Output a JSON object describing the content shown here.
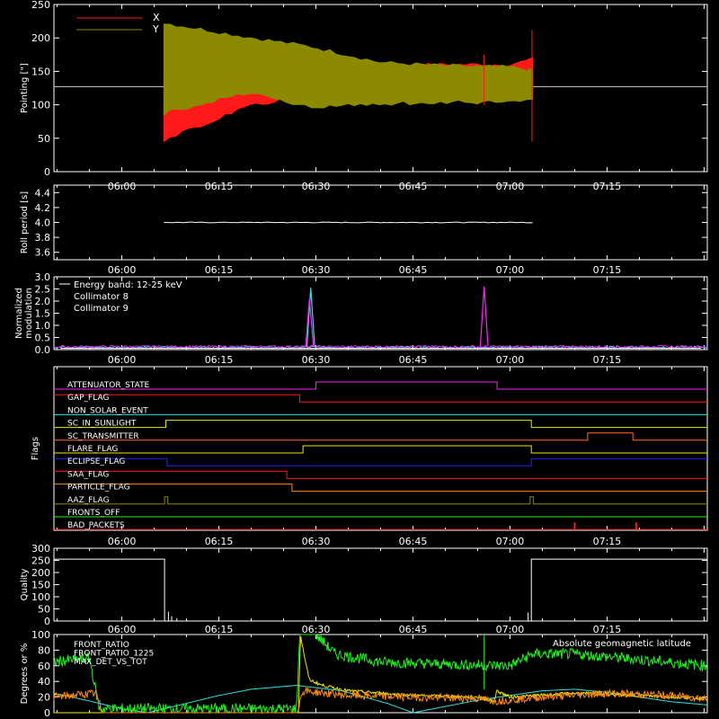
{
  "time_axis": {
    "tick_labels": [
      "06:00",
      "06:15",
      "06:30",
      "06:45",
      "07:00",
      "07:15"
    ],
    "tick_minutes": [
      360,
      375,
      390,
      405,
      420,
      435
    ],
    "range_minutes": [
      349.5,
      450.5
    ]
  },
  "colors": {
    "red": "#ff1a1a",
    "olive": "#8c8a00",
    "white": "#ffffff",
    "cyan": "#33e0e0",
    "magenta": "#ff22ff",
    "orange": "#ff8a1a",
    "yellow": "#f2e600",
    "blue": "#2222ff",
    "green": "#22ee22",
    "brown": "#c85a28",
    "dark_orange": "#ff6a2a"
  },
  "chart_data": [
    {
      "id": "pointing",
      "type": "line",
      "ylabel": "Pointing [\"]",
      "ylim": [
        0,
        250
      ],
      "yticks": [
        0,
        50,
        100,
        150,
        200,
        250
      ],
      "baseline": 127,
      "legend": [
        {
          "name": "X",
          "color": "#ff1a1a"
        },
        {
          "name": "Y",
          "color": "#8c8a00"
        }
      ],
      "series": [
        {
          "name": "X",
          "x_min": [
            366.5,
            380,
            389,
            400,
            410,
            420,
            423.5
          ],
          "lower": [
            48,
            100,
            114,
            118,
            122,
            122,
            124
          ],
          "upper": [
            143,
            127,
            148,
            158,
            160,
            160,
            168
          ]
        },
        {
          "name": "Y",
          "x_min": [
            366.5,
            380,
            389,
            400,
            410,
            420,
            423.5
          ],
          "lower": [
            88,
            120,
            96,
            102,
            104,
            104,
            108
          ],
          "upper": [
            222,
            200,
            187,
            163,
            158,
            156,
            152
          ]
        }
      ]
    },
    {
      "id": "roll_period",
      "type": "line",
      "ylabel": "Roll period [s]",
      "ylim": [
        3.5,
        4.5
      ],
      "yticks": [
        3.6,
        3.8,
        4.0,
        4.2,
        4.4
      ],
      "series": [
        {
          "name": "roll",
          "x_min": [
            366.5,
            423.5
          ],
          "y": [
            4.0,
            4.0
          ]
        }
      ]
    },
    {
      "id": "modulation",
      "type": "line",
      "ylabel": "Normalized modulation",
      "ylim": [
        0,
        3.0
      ],
      "yticks": [
        0.0,
        0.5,
        1.0,
        1.5,
        2.0,
        2.5,
        3.0
      ],
      "legend_title": "Energy band: 12-25 keV",
      "legend": [
        {
          "name": "Collimator 8",
          "color": "#33e0e0"
        },
        {
          "name": "Collimator 9",
          "color": "#ff22ff"
        }
      ],
      "spikes": [
        {
          "series": "Collimator 8",
          "x_min": 389.2,
          "y": 2.55
        },
        {
          "series": "Collimator 9",
          "x_min": 389.0,
          "y": 2.1
        },
        {
          "series": "Collimator 9",
          "x_min": 416.0,
          "y": 2.6
        }
      ]
    },
    {
      "id": "flags",
      "type": "line",
      "ylabel": "Flags",
      "flags": [
        {
          "name": "ATTENUATOR_STATE",
          "color": "#ff22ff",
          "x": [
            349.5,
            390,
            390,
            418,
            418,
            450.5
          ],
          "y": [
            0,
            0,
            1,
            1,
            0,
            0
          ]
        },
        {
          "name": "GAP_FLAG",
          "color": "#ff1a1a",
          "x": [
            349.5,
            387.5,
            387.5,
            450.5
          ],
          "y": [
            1,
            1,
            0,
            0
          ]
        },
        {
          "name": "NON_SOLAR_EVENT",
          "color": "#33e0e0",
          "x": [
            349.5,
            450.5
          ],
          "y": [
            0,
            0
          ]
        },
        {
          "name": "SC_IN_SUNLIGHT",
          "color": "#f2e600",
          "x": [
            349.5,
            366.8,
            366.8,
            423.3,
            423.3,
            450.5
          ],
          "y": [
            0,
            0,
            1,
            1,
            0,
            0
          ]
        },
        {
          "name": "SC_TRANSMITTER",
          "color": "#ff6a2a",
          "x": [
            349.5,
            432,
            432,
            439,
            439,
            450.5
          ],
          "y": [
            0,
            0,
            1,
            1,
            0,
            0
          ]
        },
        {
          "name": "FLARE_FLAG",
          "color": "#f2e600",
          "x": [
            349.5,
            388,
            388,
            423.3,
            423.3,
            450.5
          ],
          "y": [
            0,
            0,
            1,
            1,
            0,
            0
          ]
        },
        {
          "name": "ECLIPSE_FLAG",
          "color": "#2222ff",
          "x": [
            349.5,
            367,
            367,
            423.3,
            423.3,
            450.5
          ],
          "y": [
            1,
            1,
            0,
            0,
            1,
            1
          ]
        },
        {
          "name": "SAA_FLAG",
          "color": "#ff1a1a",
          "x": [
            349.5,
            385.5,
            385.5,
            450.5
          ],
          "y": [
            1,
            1,
            0,
            0
          ]
        },
        {
          "name": "PARTICLE_FLAG",
          "color": "#ff8a1a",
          "x": [
            349.5,
            386.3,
            386.3,
            450.5
          ],
          "y": [
            1,
            1,
            0,
            0
          ]
        },
        {
          "name": "AAZ_FLAG",
          "color": "#8c8a00",
          "x": [
            349.5,
            366.6,
            366.6,
            367.1,
            367.1,
            423.1,
            423.1,
            423.6,
            423.6,
            450.5
          ],
          "y": [
            0,
            0,
            1,
            1,
            0,
            0,
            1,
            1,
            0,
            0
          ]
        },
        {
          "name": "FRONTS_OFF",
          "color": "#22ee22",
          "x": [
            349.5,
            450.5
          ],
          "y": [
            0,
            0
          ]
        },
        {
          "name": "BAD_PACKETS",
          "color": "#ff1a1a",
          "x": [
            349.5,
            450.5
          ],
          "y": [
            0,
            0
          ],
          "spikes_x": [
            430,
            439.5
          ]
        }
      ]
    },
    {
      "id": "quality",
      "type": "line",
      "ylabel": "Quality",
      "ylim": [
        0,
        300
      ],
      "yticks": [
        0,
        50,
        100,
        150,
        200,
        250,
        300
      ],
      "series": [
        {
          "name": "quality",
          "x_min": [
            349.5,
            366.6,
            366.6,
            423.3,
            423.3,
            450.5
          ],
          "y": [
            255,
            255,
            0,
            0,
            255,
            255
          ]
        }
      ],
      "spikes": [
        {
          "x_min": 367.2,
          "y": 38
        },
        {
          "x_min": 367.7,
          "y": 20
        },
        {
          "x_min": 368.5,
          "y": 12
        },
        {
          "x_min": 422.8,
          "y": 35
        }
      ]
    },
    {
      "id": "ratios",
      "type": "line",
      "ylabel": "Degrees or %",
      "ylim": [
        0,
        100
      ],
      "yticks": [
        0,
        20,
        40,
        60,
        80,
        100
      ],
      "legend": [
        {
          "name": "FRONT_RATIO",
          "color": "#f2e600"
        },
        {
          "name": "FRONT_RATIO_1225",
          "color": "#22ee22"
        },
        {
          "name": "MAX_DET_VS_TOT",
          "color": "#ff8a1a"
        }
      ],
      "right_label": {
        "name": "Absolute geomagnetic latitude",
        "color": "#33e0e0"
      },
      "series": [
        {
          "name": "Absolute geomagnetic latitude",
          "x_min": [
            349.5,
            355,
            360,
            364,
            370,
            375,
            380,
            387,
            394,
            401,
            405,
            410,
            415,
            420,
            425,
            430,
            435,
            440,
            445,
            450.5
          ],
          "y": [
            25,
            15,
            5,
            0,
            12,
            22,
            30,
            35,
            28,
            12,
            0,
            8,
            16,
            22,
            28,
            30,
            26,
            20,
            14,
            10
          ]
        },
        {
          "name": "FRONT_RATIO_1225",
          "x_min": [
            349.5,
            355,
            356.5,
            387,
            387.5,
            390,
            393,
            400,
            410,
            420,
            423.5,
            430,
            440,
            450.5
          ],
          "y": [
            65,
            70,
            5,
            5,
            100,
            100,
            75,
            65,
            62,
            60,
            75,
            75,
            68,
            60
          ]
        },
        {
          "name": "FRONT_RATIO",
          "x_min": [
            349.5,
            387.3,
            387.6,
            388.5,
            389,
            391,
            395,
            405,
            415,
            417.5,
            418,
            420,
            430,
            440,
            450.5
          ],
          "y": [
            0,
            0,
            100,
            60,
            42,
            35,
            28,
            22,
            20,
            15,
            28,
            20,
            25,
            22,
            18
          ]
        },
        {
          "name": "MAX_DET_VS_TOT",
          "x_min": [
            349.5,
            356,
            357,
            387,
            388,
            395,
            405,
            415,
            418,
            425,
            435,
            445,
            450.5
          ],
          "y": [
            20,
            25,
            0,
            0,
            28,
            22,
            20,
            18,
            15,
            20,
            25,
            22,
            18
          ]
        }
      ]
    }
  ]
}
